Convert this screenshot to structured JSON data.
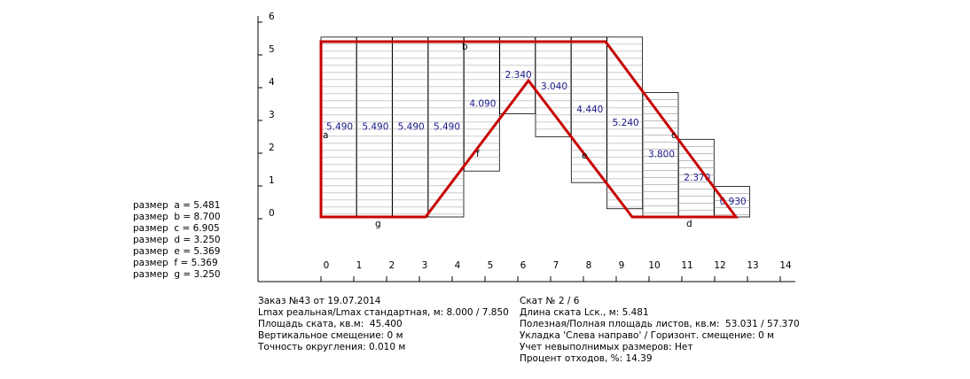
{
  "axes": {
    "xticks": [
      0,
      1,
      2,
      3,
      4,
      5,
      6,
      7,
      8,
      9,
      10,
      11,
      12,
      13,
      14
    ],
    "yticks": [
      0,
      1,
      2,
      3,
      4,
      5,
      6
    ]
  },
  "sheets": [
    "5.490",
    "5.490",
    "5.490",
    "5.490",
    "4.090",
    "2.340",
    "3.040",
    "4.440",
    "5.240",
    "3.800",
    "2.370",
    "0.930"
  ],
  "points": [
    "a",
    "b",
    "c",
    "d",
    "e",
    "f",
    "g"
  ],
  "sizes": [
    "размер  a = 5.481",
    "размер  b = 8.700",
    "размер  c = 6.905",
    "размер  d = 3.250",
    "размер  e = 5.369",
    "размер  f = 5.369",
    "размер  g = 3.250"
  ],
  "info_left": [
    "Заказ №43 от 19.07.2014",
    "Lmax реальная/Lmax стандартная, м: 8.000 / 7.850",
    "Площадь ската, кв.м:  45.400",
    "Вертикальное смещение: 0 м",
    "Точность округления: 0.010 м"
  ],
  "info_right": [
    "Скат № 2 / 6",
    "Длина ската Lск., м: 5.481",
    "Полезная/Полная площадь листов, кв.м:  53.031 / 57.370",
    "Укладка 'Слева направо' / Горизонт. смещение: 0 м",
    "Учет невыполнимых размеров: Нет",
    "Процент отходов, %: 14.39"
  ]
}
